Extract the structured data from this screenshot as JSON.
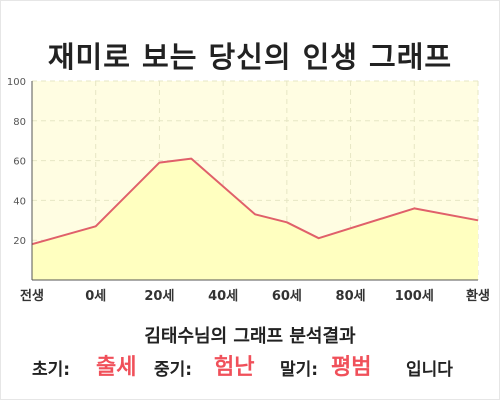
{
  "title": "재미로 보는 당신의 인생 그래프",
  "colors": {
    "plot_bg": "#fffde2",
    "area_fill": "#ffffc0",
    "line": "#e0606a",
    "grid": "#e6e6c4",
    "axis": "#555555",
    "highlight": "#f0505a"
  },
  "chart_data": {
    "type": "area",
    "title": "재미로 보는 당신의 인생 그래프",
    "x_tick_labels": [
      "전생",
      "0세",
      "20세",
      "40세",
      "60세",
      "80세",
      "100세",
      "환생"
    ],
    "y_ticks": [
      20,
      40,
      60,
      80,
      100
    ],
    "ylim": [
      0,
      100
    ],
    "grid": true,
    "series": [
      {
        "points": [
          {
            "x": "전생",
            "y": 18
          },
          {
            "x": "0세",
            "y": 27
          },
          {
            "x": "20세",
            "y": 59
          },
          {
            "x": "30세",
            "y": 61
          },
          {
            "x": "50세",
            "y": 33
          },
          {
            "x": "60세",
            "y": 29
          },
          {
            "x": "70세",
            "y": 21
          },
          {
            "x": "100세",
            "y": 36
          },
          {
            "x": "환생",
            "y": 30
          }
        ]
      }
    ]
  },
  "result": {
    "subtitle": "김태수님의 그래프 분석결과",
    "early_label": "초기:",
    "early_value": "출세",
    "middle_label": "중기:",
    "middle_value": "험난",
    "late_label": "말기:",
    "late_value": "평범",
    "ending": "입니다"
  }
}
